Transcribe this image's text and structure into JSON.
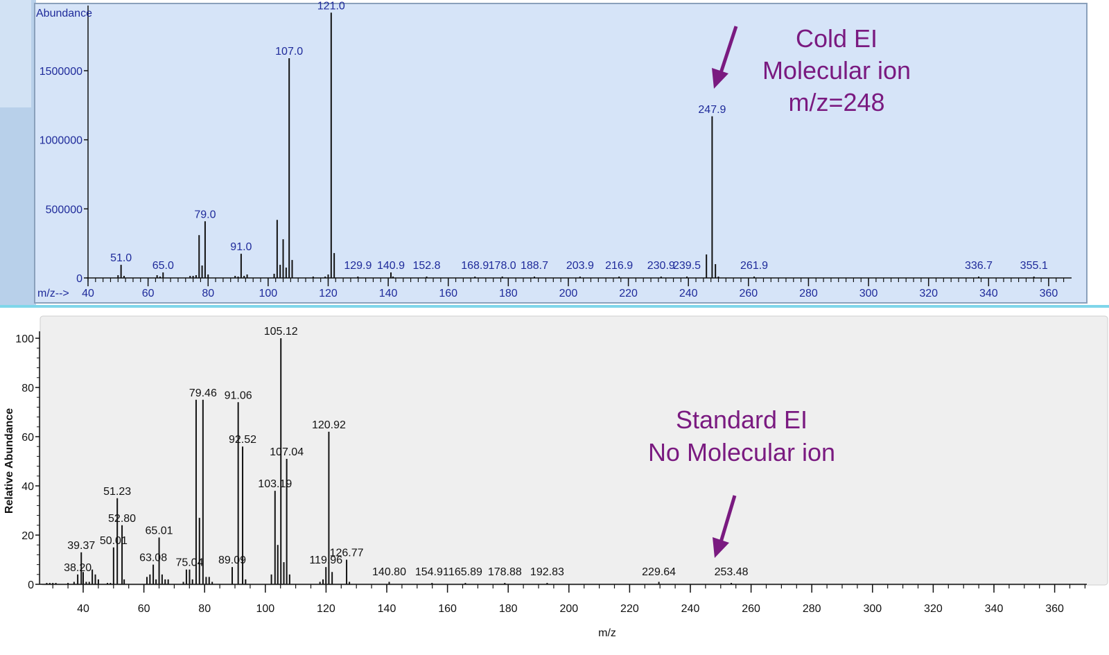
{
  "colors": {
    "top_panel_bg": "#d6e4f8",
    "bottom_plot_bg": "#efefef",
    "top_label": "#1e2a9a",
    "annotation": "#7a1a80",
    "label_tick": "#4cae4c"
  },
  "annotations": {
    "top": [
      "Cold EI",
      "Molecular ion",
      "m/z=248"
    ],
    "bottom": [
      "Standard EI",
      "No Molecular ion"
    ]
  },
  "chart_data": [
    {
      "type": "bar",
      "title": "",
      "ylabel": "Abundance",
      "xlabel": "m/z-->",
      "xlim": [
        40,
        366
      ],
      "ylim": [
        0,
        1970000
      ],
      "xticks": [
        40,
        60,
        80,
        100,
        120,
        140,
        160,
        180,
        200,
        220,
        240,
        260,
        280,
        300,
        320,
        340,
        360
      ],
      "yticks": [
        0,
        500000,
        1000000,
        1500000
      ],
      "grid": false,
      "peaks": [
        {
          "mz": 50,
          "y": 20000
        },
        {
          "mz": 51.0,
          "y": 95000,
          "label": "51.0"
        },
        {
          "mz": 52,
          "y": 15000
        },
        {
          "mz": 63,
          "y": 20000
        },
        {
          "mz": 64,
          "y": 10000
        },
        {
          "mz": 65.0,
          "y": 40000,
          "label": "65.0"
        },
        {
          "mz": 74,
          "y": 15000
        },
        {
          "mz": 75,
          "y": 15000
        },
        {
          "mz": 76,
          "y": 20000
        },
        {
          "mz": 77,
          "y": 310000
        },
        {
          "mz": 78,
          "y": 90000
        },
        {
          "mz": 79.0,
          "y": 410000,
          "label": "79.0"
        },
        {
          "mz": 80,
          "y": 25000
        },
        {
          "mz": 89,
          "y": 15000
        },
        {
          "mz": 90,
          "y": 10000
        },
        {
          "mz": 91.0,
          "y": 175000,
          "label": "91.0"
        },
        {
          "mz": 92,
          "y": 15000
        },
        {
          "mz": 93,
          "y": 25000
        },
        {
          "mz": 102,
          "y": 30000
        },
        {
          "mz": 103,
          "y": 420000
        },
        {
          "mz": 104,
          "y": 95000
        },
        {
          "mz": 105,
          "y": 280000
        },
        {
          "mz": 106,
          "y": 75000
        },
        {
          "mz": 107.0,
          "y": 1590000,
          "label": "107.0"
        },
        {
          "mz": 108,
          "y": 130000
        },
        {
          "mz": 115,
          "y": 10000
        },
        {
          "mz": 119,
          "y": 10000
        },
        {
          "mz": 120,
          "y": 25000
        },
        {
          "mz": 121.0,
          "y": 1920000,
          "label": "121.0"
        },
        {
          "mz": 122,
          "y": 180000
        },
        {
          "mz": 129.9,
          "y": 8000,
          "label": "129.9"
        },
        {
          "mz": 140.9,
          "y": 40000,
          "label": "140.9"
        },
        {
          "mz": 141.6,
          "y": 5000
        },
        {
          "mz": 152.8,
          "y": 3000,
          "label": "152.8"
        },
        {
          "mz": 168.9,
          "y": 5000,
          "label": "168.9"
        },
        {
          "mz": 178.0,
          "y": 3000,
          "label": "178.0"
        },
        {
          "mz": 188.7,
          "y": 3000,
          "label": "188.7"
        },
        {
          "mz": 203.9,
          "y": 5000,
          "label": "203.9"
        },
        {
          "mz": 216.9,
          "y": 3000,
          "label": "216.9"
        },
        {
          "mz": 230.9,
          "y": 3000,
          "label": "230.9"
        },
        {
          "mz": 239.5,
          "y": 3000,
          "label": "239.5"
        },
        {
          "mz": 246,
          "y": 170000
        },
        {
          "mz": 247.9,
          "y": 1170000,
          "label": "247.9"
        },
        {
          "mz": 249,
          "y": 100000
        },
        {
          "mz": 250,
          "y": 10000
        },
        {
          "mz": 261.9,
          "y": 3000,
          "label": "261.9"
        },
        {
          "mz": 336.7,
          "y": 2000,
          "label": "336.7"
        },
        {
          "mz": 355.1,
          "y": 2000,
          "label": "355.1"
        }
      ]
    },
    {
      "type": "bar",
      "title": "",
      "ylabel": "Relative Abundance",
      "xlabel": "m/z",
      "xlim": [
        27,
        370
      ],
      "ylim": [
        0,
        100
      ],
      "xticks": [
        40,
        60,
        80,
        100,
        120,
        140,
        160,
        180,
        200,
        220,
        240,
        260,
        280,
        300,
        320,
        340,
        360
      ],
      "yticks": [
        0,
        20,
        40,
        60,
        80,
        100
      ],
      "grid": false,
      "peaks": [
        {
          "mz": 28,
          "y": 0.5
        },
        {
          "mz": 29,
          "y": 0.5
        },
        {
          "mz": 30,
          "y": 0.5
        },
        {
          "mz": 31,
          "y": 0.5
        },
        {
          "mz": 35,
          "y": 0.5
        },
        {
          "mz": 37,
          "y": 1
        },
        {
          "mz": 38.2,
          "y": 4,
          "label": "38.20"
        },
        {
          "mz": 39.37,
          "y": 13,
          "label": "39.37"
        },
        {
          "mz": 40,
          "y": 5
        },
        {
          "mz": 41,
          "y": 1
        },
        {
          "mz": 42,
          "y": 1
        },
        {
          "mz": 43,
          "y": 6
        },
        {
          "mz": 44,
          "y": 4
        },
        {
          "mz": 45,
          "y": 2
        },
        {
          "mz": 48,
          "y": 0.5
        },
        {
          "mz": 49,
          "y": 0.5
        },
        {
          "mz": 50.01,
          "y": 15,
          "label": "50.01"
        },
        {
          "mz": 51.23,
          "y": 35,
          "label": "51.23"
        },
        {
          "mz": 52.8,
          "y": 24,
          "label": "52.80"
        },
        {
          "mz": 53.5,
          "y": 2
        },
        {
          "mz": 61,
          "y": 3
        },
        {
          "mz": 62,
          "y": 4
        },
        {
          "mz": 63.08,
          "y": 8,
          "label": "63.08"
        },
        {
          "mz": 64,
          "y": 2
        },
        {
          "mz": 65.01,
          "y": 19,
          "label": "65.01"
        },
        {
          "mz": 66,
          "y": 4
        },
        {
          "mz": 67,
          "y": 2
        },
        {
          "mz": 68,
          "y": 2
        },
        {
          "mz": 73,
          "y": 1
        },
        {
          "mz": 74,
          "y": 6
        },
        {
          "mz": 75.04,
          "y": 6,
          "label": "75.04"
        },
        {
          "mz": 76,
          "y": 2
        },
        {
          "mz": 77.2,
          "y": 75
        },
        {
          "mz": 78.3,
          "y": 27
        },
        {
          "mz": 79.46,
          "y": 75,
          "label": "79.46"
        },
        {
          "mz": 80.5,
          "y": 3
        },
        {
          "mz": 81.5,
          "y": 3
        },
        {
          "mz": 82.5,
          "y": 1
        },
        {
          "mz": 89.09,
          "y": 7,
          "label": "89.09"
        },
        {
          "mz": 91.06,
          "y": 74,
          "label": "91.06"
        },
        {
          "mz": 92.52,
          "y": 56,
          "label": "92.52"
        },
        {
          "mz": 93.5,
          "y": 2
        },
        {
          "mz": 102,
          "y": 4
        },
        {
          "mz": 103.19,
          "y": 38,
          "label": "103.19"
        },
        {
          "mz": 104.1,
          "y": 16
        },
        {
          "mz": 105.12,
          "y": 100,
          "label": "105.12"
        },
        {
          "mz": 106.1,
          "y": 9
        },
        {
          "mz": 107.04,
          "y": 51,
          "label": "107.04"
        },
        {
          "mz": 108,
          "y": 4
        },
        {
          "mz": 118,
          "y": 1
        },
        {
          "mz": 119,
          "y": 2
        },
        {
          "mz": 119.96,
          "y": 7,
          "label": "119.96"
        },
        {
          "mz": 120.92,
          "y": 62,
          "label": "120.92"
        },
        {
          "mz": 122,
          "y": 5
        },
        {
          "mz": 126.77,
          "y": 10,
          "label": "126.77"
        },
        {
          "mz": 127.7,
          "y": 1
        },
        {
          "mz": 140.8,
          "y": 1,
          "label": "140.80"
        },
        {
          "mz": 154.91,
          "y": 0.5,
          "label": "154.91"
        },
        {
          "mz": 165.89,
          "y": 0.5,
          "label": "165.89"
        },
        {
          "mz": 178.88,
          "y": 0.5,
          "label": "178.88"
        },
        {
          "mz": 192.83,
          "y": 0.5,
          "label": "192.83"
        },
        {
          "mz": 229.64,
          "y": 1,
          "label": "229.64"
        },
        {
          "mz": 253.48,
          "y": 0.5,
          "label": "253.48"
        }
      ]
    }
  ]
}
